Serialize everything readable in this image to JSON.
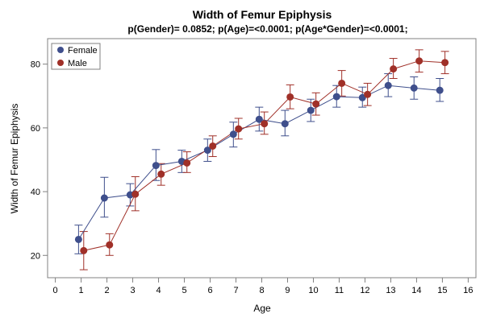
{
  "chart_data": {
    "type": "line",
    "title": "Width of Femur Epiphysis",
    "subtitle": "p(Gender)= 0.0852; p(Age)=<0.0001; p(Age*Gender)=<0.0001;",
    "xlabel": "Age",
    "ylabel": "Width of Femur Epiphysis",
    "xlim": [
      -0.3,
      16.3
    ],
    "ylim": [
      13,
      88
    ],
    "xticks": [
      0,
      1,
      2,
      3,
      4,
      5,
      6,
      7,
      8,
      9,
      10,
      11,
      12,
      13,
      14,
      15,
      16
    ],
    "yticks": [
      20,
      40,
      60,
      80
    ],
    "grid": false,
    "error_bars": true,
    "legend": {
      "placement": "top-left",
      "entries": [
        "Female",
        "Male"
      ]
    },
    "series": [
      {
        "name": "Female",
        "color": "#3f4f8c",
        "x": [
          1,
          2,
          3,
          4,
          5,
          6,
          7,
          8,
          9,
          10,
          11,
          12,
          13,
          14,
          15
        ],
        "values": [
          25,
          38,
          39,
          48.2,
          49.5,
          53,
          58,
          62.7,
          61.3,
          65.5,
          69.8,
          69.5,
          73.3,
          72.5,
          71.8
        ],
        "lower": [
          20.5,
          32,
          35.5,
          43.5,
          46,
          49.5,
          54,
          59,
          57.5,
          62,
          66.5,
          66.5,
          69.8,
          69,
          68.3
        ],
        "upper": [
          29.5,
          44.5,
          42.5,
          53.2,
          53,
          56.5,
          61.8,
          66.5,
          65.5,
          69,
          73.3,
          72.8,
          77,
          76,
          75.5
        ]
      },
      {
        "name": "Male",
        "color": "#a03028",
        "x": [
          1,
          2,
          3,
          4,
          5,
          6,
          7,
          8,
          9,
          10,
          11,
          12,
          13,
          14,
          15
        ],
        "values": [
          21.5,
          23.3,
          39.2,
          45.5,
          49,
          54.3,
          59.7,
          61.3,
          69.7,
          67.5,
          74,
          70.5,
          78.5,
          81,
          80.5
        ],
        "lower": [
          15.5,
          20,
          34,
          42,
          46,
          51,
          56.5,
          58,
          66,
          64,
          70,
          67,
          75.5,
          77.5,
          77
        ],
        "upper": [
          27.5,
          26.8,
          44.7,
          48.8,
          52.5,
          57.5,
          63,
          65,
          73.5,
          71,
          78,
          74,
          81.8,
          84.5,
          84
        ]
      }
    ]
  }
}
